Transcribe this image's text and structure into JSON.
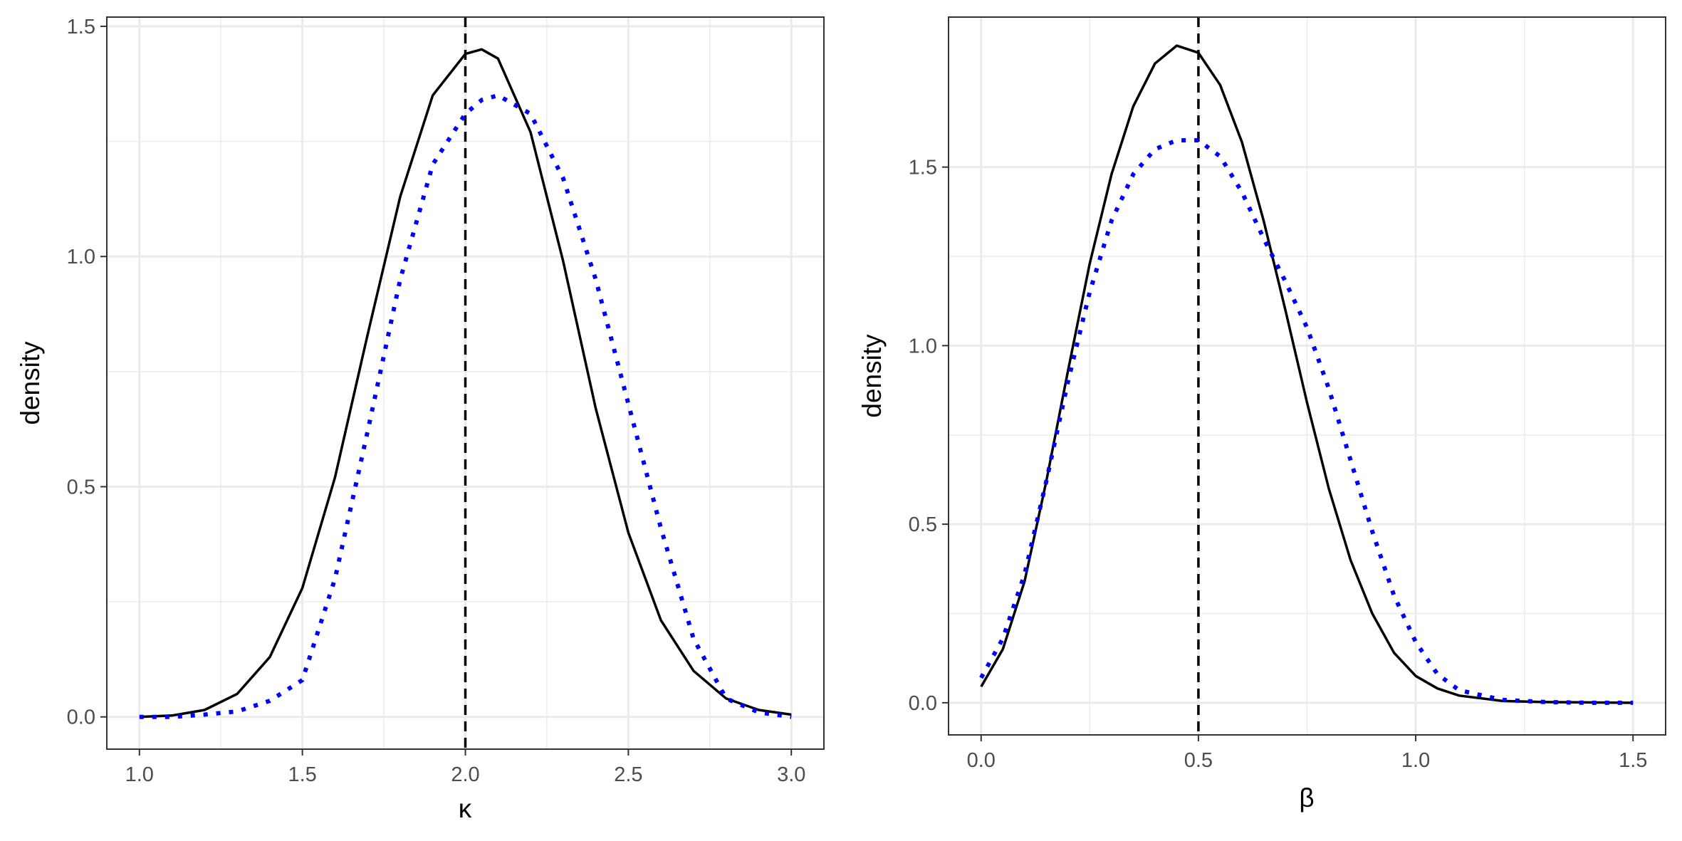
{
  "chart_data": [
    {
      "type": "line",
      "title": "",
      "xlabel": "κ",
      "ylabel": "density",
      "xlim": [
        0.9,
        3.1
      ],
      "ylim": [
        -0.07,
        1.52
      ],
      "xticks": [
        1.0,
        1.5,
        2.0,
        2.5,
        3.0
      ],
      "xtick_labels": [
        "1.0",
        "1.5",
        "2.0",
        "2.5",
        "3.0"
      ],
      "yticks": [
        0.0,
        0.5,
        1.0,
        1.5
      ],
      "ytick_labels": [
        "0.0",
        "0.5",
        "1.0",
        "1.5"
      ],
      "grid": true,
      "vline": {
        "x": 2.0,
        "style": "dashed",
        "color": "#000000"
      },
      "series": [
        {
          "style": "solid",
          "color": "#000000",
          "x": [
            1.0,
            1.1,
            1.2,
            1.3,
            1.4,
            1.5,
            1.6,
            1.7,
            1.8,
            1.9,
            2.0,
            2.05,
            2.1,
            2.2,
            2.3,
            2.4,
            2.5,
            2.6,
            2.7,
            2.8,
            2.9,
            3.0
          ],
          "y": [
            0.0,
            0.003,
            0.015,
            0.05,
            0.13,
            0.28,
            0.52,
            0.83,
            1.13,
            1.35,
            1.44,
            1.45,
            1.43,
            1.27,
            0.99,
            0.67,
            0.4,
            0.21,
            0.1,
            0.04,
            0.015,
            0.005
          ]
        },
        {
          "style": "dotted",
          "color": "#0000ff",
          "x": [
            1.0,
            1.1,
            1.2,
            1.3,
            1.4,
            1.5,
            1.6,
            1.7,
            1.8,
            1.9,
            2.0,
            2.05,
            2.1,
            2.2,
            2.3,
            2.4,
            2.5,
            2.6,
            2.7,
            2.8,
            2.9,
            3.0
          ],
          "y": [
            0.0,
            0.0,
            0.005,
            0.012,
            0.035,
            0.08,
            0.3,
            0.62,
            0.95,
            1.2,
            1.31,
            1.34,
            1.35,
            1.31,
            1.17,
            0.95,
            0.68,
            0.41,
            0.17,
            0.04,
            0.01,
            0.0
          ]
        }
      ]
    },
    {
      "type": "line",
      "title": "",
      "xlabel": "β",
      "ylabel": "density",
      "xlim": [
        -0.075,
        1.575
      ],
      "ylim": [
        -0.09,
        1.92
      ],
      "xticks": [
        0.0,
        0.5,
        1.0,
        1.5
      ],
      "xtick_labels": [
        "0.0",
        "0.5",
        "1.0",
        "1.5"
      ],
      "yticks": [
        0.0,
        0.5,
        1.0,
        1.5
      ],
      "ytick_labels": [
        "0.0",
        "0.5",
        "1.0",
        "1.5"
      ],
      "grid": true,
      "vline": {
        "x": 0.5,
        "style": "dashed",
        "color": "#000000"
      },
      "series": [
        {
          "style": "solid",
          "color": "#000000",
          "x": [
            0.0,
            0.05,
            0.1,
            0.15,
            0.2,
            0.25,
            0.3,
            0.35,
            0.4,
            0.45,
            0.5,
            0.55,
            0.6,
            0.65,
            0.7,
            0.75,
            0.8,
            0.85,
            0.9,
            0.95,
            1.0,
            1.05,
            1.1,
            1.2,
            1.3,
            1.4,
            1.5
          ],
          "y": [
            0.045,
            0.15,
            0.34,
            0.62,
            0.93,
            1.23,
            1.48,
            1.67,
            1.79,
            1.84,
            1.82,
            1.73,
            1.57,
            1.35,
            1.1,
            0.84,
            0.6,
            0.4,
            0.25,
            0.14,
            0.075,
            0.04,
            0.02,
            0.005,
            0.002,
            0.001,
            0.0
          ]
        },
        {
          "style": "dotted",
          "color": "#0000ff",
          "x": [
            0.0,
            0.05,
            0.1,
            0.15,
            0.2,
            0.25,
            0.3,
            0.35,
            0.4,
            0.45,
            0.5,
            0.55,
            0.6,
            0.65,
            0.7,
            0.75,
            0.8,
            0.85,
            0.9,
            0.95,
            1.0,
            1.05,
            1.1,
            1.2,
            1.3,
            1.4,
            1.5
          ],
          "y": [
            0.07,
            0.18,
            0.36,
            0.62,
            0.9,
            1.15,
            1.35,
            1.48,
            1.55,
            1.575,
            1.575,
            1.53,
            1.43,
            1.3,
            1.18,
            1.05,
            0.88,
            0.68,
            0.48,
            0.3,
            0.17,
            0.08,
            0.035,
            0.008,
            0.002,
            0.0,
            0.0
          ]
        }
      ]
    }
  ]
}
